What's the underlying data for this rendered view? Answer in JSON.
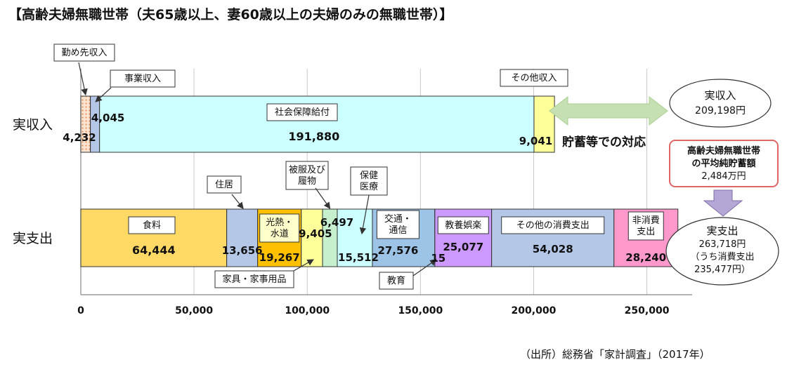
{
  "title": "【高齢夫婦無職世帯（夫65歳以上、妻60歳以上の夫婦のみの無職世帯）】",
  "source": "（出所）総務省「家計調査」（2017年）",
  "chart_data": {
    "type": "bar",
    "orientation": "horizontal",
    "stacked": true,
    "xlim": [
      0,
      270000
    ],
    "x_ticks": [
      0,
      50000,
      100000,
      150000,
      200000,
      250000
    ],
    "x_tick_labels": [
      "0",
      "50,000",
      "100,000",
      "150,000",
      "200,000",
      "250,000"
    ],
    "grid": true,
    "rows": [
      {
        "label": "実収入",
        "segments": [
          {
            "name": "勤め先収入",
            "value": 4232,
            "value_label": "4,232",
            "color": "#f4b183"
          },
          {
            "name": "事業収入",
            "value": 4045,
            "value_label": "4,045",
            "color": "#b4c7e7"
          },
          {
            "name": "社会保障給付",
            "value": 191880,
            "value_label": "191,880",
            "color": "#ccffff"
          },
          {
            "name": "その他収入",
            "value": 9041,
            "value_label": "9,041",
            "color": "#ffff99"
          }
        ]
      },
      {
        "label": "実支出",
        "segments": [
          {
            "name": "食料",
            "value": 64444,
            "value_label": "64,444",
            "color": "#ffd966"
          },
          {
            "name": "住居",
            "value": 13656,
            "value_label": "13,656",
            "color": "#b4c7e7"
          },
          {
            "name": "光熱・水道",
            "value": 19267,
            "value_label": "19,267",
            "color": "#ffc000"
          },
          {
            "name": "家具・家事用品",
            "value": 9405,
            "value_label": "9,405",
            "color": "#ffff99"
          },
          {
            "name": "被服及び履物",
            "value": 6497,
            "value_label": "6,497",
            "color": "#c6efce"
          },
          {
            "name": "保健医療",
            "value": 15512,
            "value_label": "15,512",
            "color": "#ccffff"
          },
          {
            "name": "交通・通信",
            "value": 27576,
            "value_label": "27,576",
            "color": "#9dc3e6"
          },
          {
            "name": "教育",
            "value": 15,
            "value_label": "15",
            "color": "#cccccc"
          },
          {
            "name": "教養娯楽",
            "value": 25077,
            "value_label": "25,077",
            "color": "#cc99ff"
          },
          {
            "name": "その他の消費支出",
            "value": 54028,
            "value_label": "54,028",
            "color": "#b4c7e7"
          },
          {
            "name": "非消費支出",
            "value": 28240,
            "value_label": "28,240",
            "color": "#ff99cc"
          }
        ]
      }
    ],
    "annotations": {
      "savings_text": "貯蓄等での対応",
      "income_ellipse": [
        "実収入",
        "209,198円"
      ],
      "assets_box": [
        "高齢夫婦無職世帯",
        "の平均純貯蓄額",
        "2,484万円"
      ],
      "expense_ellipse": [
        "実支出",
        "263,718円",
        "（うち消費支出",
        "235,477円）"
      ]
    },
    "colors": {
      "grid": "#c8c8c8",
      "axis": "#888888",
      "arrow_green": "#c6e0b4",
      "arrow_purple": "#b4a7d6",
      "assets_border": "#e06666"
    }
  }
}
